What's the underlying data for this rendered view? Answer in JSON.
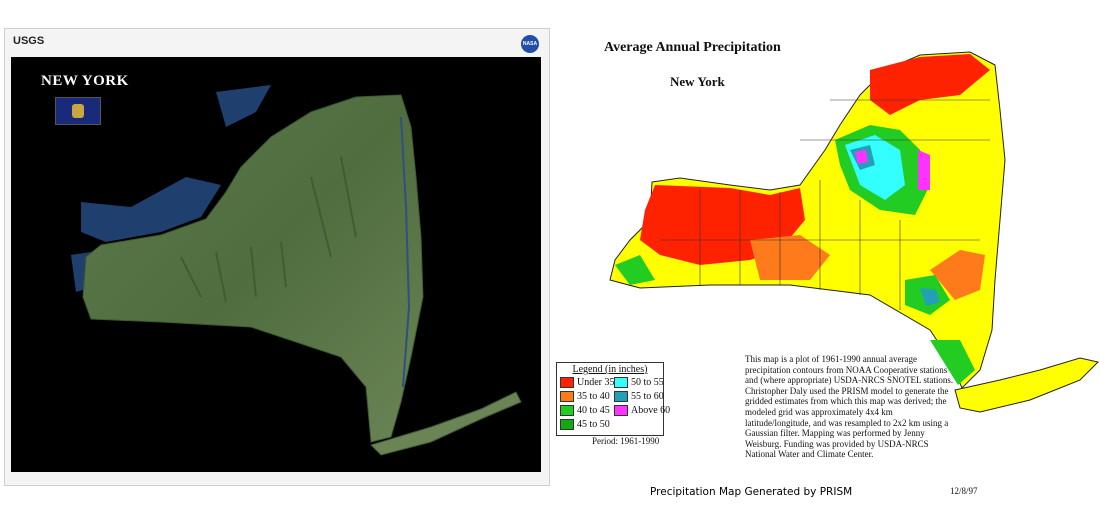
{
  "left_panel": {
    "agency_logo": "USGS",
    "nasa_logo": "NASA",
    "title": "NEW YORK",
    "caption": ""
  },
  "right_panel": {
    "title": "Average Annual Precipitation",
    "subtitle": "New York",
    "legend": {
      "title": "Legend (in inches)",
      "items": [
        {
          "label": "Under 35",
          "color": "#ff2200"
        },
        {
          "label": "35 to 40",
          "color": "#ff7a1a"
        },
        {
          "label": "40 to 45",
          "color": "#ffff00"
        },
        {
          "label": "45 to 50",
          "color": "#22cc22"
        },
        {
          "label": "50 to 55",
          "color": "#33ffff"
        },
        {
          "label": "55 to 60",
          "color": "#22a0b8"
        },
        {
          "label": "Above 60",
          "color": "#ff33ff"
        }
      ]
    },
    "period": "Period: 1961-1990",
    "description": "This map is a plot of 1961-1990 annual average precipitation contours from NOAA Cooperative stations and (where appropriate) USDA-NRCS SNOTEL stations. Christopher Daly used the PRISM model to generate the gridded estimates from which this map was derived; the modeled grid was approximately 4x4 km latitude/longitude, and was resampled to 2x2 km using a Gaussian filter. Mapping was performed by Jenny Weisburg. Funding was provided by USDA-NRCS National Water and Climate Center.",
    "footer": "Precipitation Map Generated by PRISM",
    "date": "12/8/97"
  }
}
